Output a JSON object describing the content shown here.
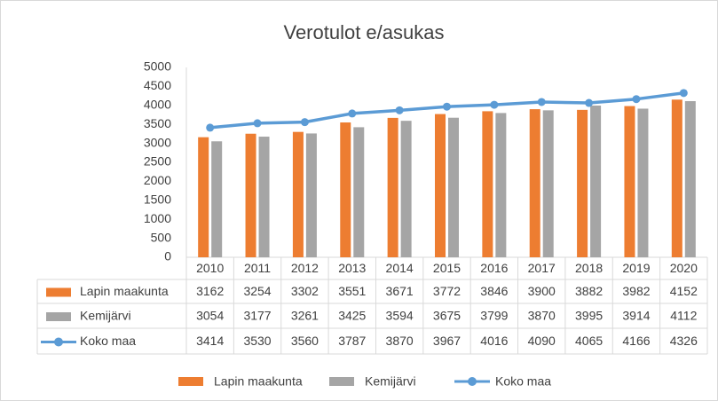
{
  "chart_data": {
    "type": "bar",
    "title": "Verotulot e/asukas",
    "categories": [
      "2010",
      "2011",
      "2012",
      "2013",
      "2014",
      "2015",
      "2016",
      "2017",
      "2018",
      "2019",
      "2020"
    ],
    "series": [
      {
        "name": "Lapin maakunta",
        "type": "bar",
        "color": "#ed7d31",
        "values": [
          3162,
          3254,
          3302,
          3551,
          3671,
          3772,
          3846,
          3900,
          3882,
          3982,
          4152
        ]
      },
      {
        "name": "Kemijärvi",
        "type": "bar",
        "color": "#a5a5a5",
        "values": [
          3054,
          3177,
          3261,
          3425,
          3594,
          3675,
          3799,
          3870,
          3995,
          3914,
          4112
        ]
      },
      {
        "name": "Koko maa",
        "type": "line",
        "color": "#5b9bd5",
        "values": [
          3414,
          3530,
          3560,
          3787,
          3870,
          3967,
          4016,
          4090,
          4065,
          4166,
          4326
        ]
      }
    ],
    "ylim": [
      0,
      5000
    ],
    "yticks": [
      0,
      500,
      1000,
      1500,
      2000,
      2500,
      3000,
      3500,
      4000,
      4500,
      5000
    ],
    "grid": false,
    "legend": "bottom"
  }
}
